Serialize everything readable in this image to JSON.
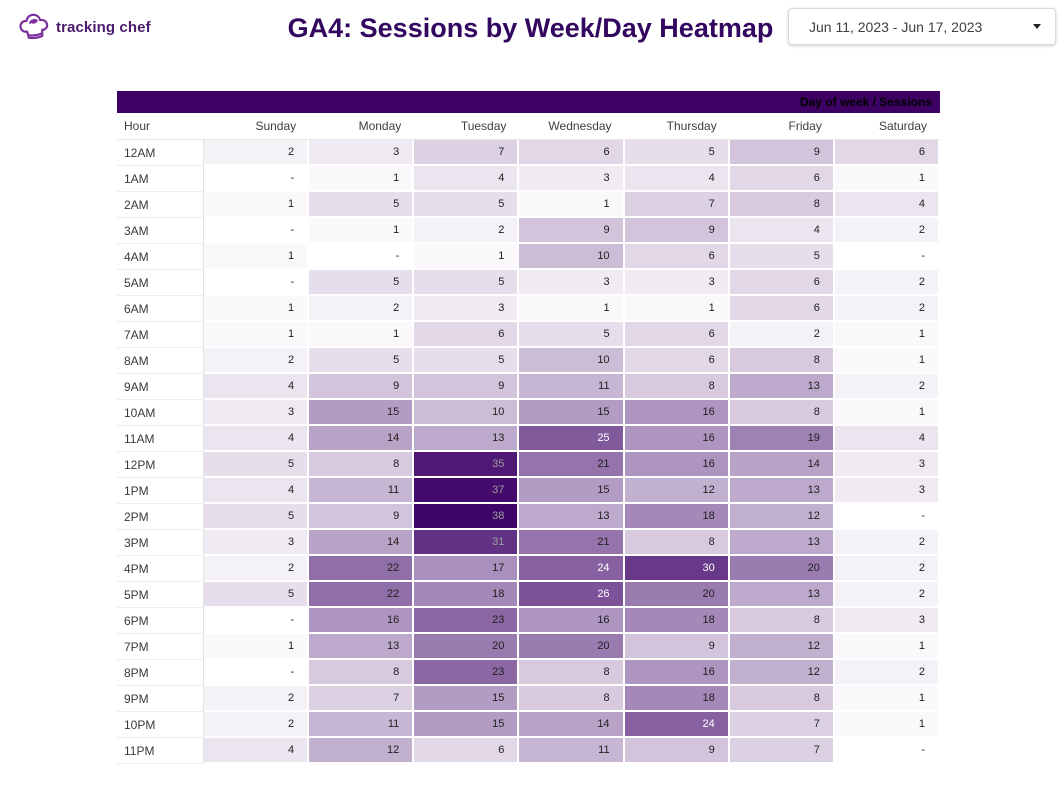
{
  "header": {
    "logo_text": "tracking chef",
    "title": "GA4: Sessions by Week/Day Heatmap",
    "date_picker": {
      "value": "Jun 11, 2023 - Jun 17, 2023"
    }
  },
  "chart_data": {
    "type": "heatmap",
    "title": "GA4: Sessions by Week/Day Heatmap",
    "corner_label": "Day of week / Sessions",
    "row_axis_label": "Hour",
    "columns": [
      "Sunday",
      "Monday",
      "Tuesday",
      "Wednesday",
      "Thursday",
      "Friday",
      "Saturday"
    ],
    "rows": [
      "12AM",
      "1AM",
      "2AM",
      "3AM",
      "4AM",
      "5AM",
      "6AM",
      "7AM",
      "8AM",
      "9AM",
      "10AM",
      "11AM",
      "12PM",
      "1PM",
      "2PM",
      "3PM",
      "4PM",
      "5PM",
      "6PM",
      "7PM",
      "8PM",
      "9PM",
      "10PM",
      "11PM"
    ],
    "values": [
      [
        2,
        3,
        7,
        6,
        5,
        9,
        6
      ],
      [
        null,
        1,
        4,
        3,
        4,
        6,
        1
      ],
      [
        1,
        5,
        5,
        1,
        7,
        8,
        4
      ],
      [
        null,
        1,
        2,
        9,
        9,
        4,
        2
      ],
      [
        1,
        null,
        1,
        10,
        6,
        5,
        null
      ],
      [
        null,
        5,
        5,
        3,
        3,
        6,
        2
      ],
      [
        1,
        2,
        3,
        1,
        1,
        6,
        2
      ],
      [
        1,
        1,
        6,
        5,
        6,
        2,
        1
      ],
      [
        2,
        5,
        5,
        10,
        6,
        8,
        1
      ],
      [
        4,
        9,
        9,
        11,
        8,
        13,
        2
      ],
      [
        3,
        15,
        10,
        15,
        16,
        8,
        1
      ],
      [
        4,
        14,
        13,
        25,
        16,
        19,
        4
      ],
      [
        5,
        8,
        35,
        21,
        16,
        14,
        3
      ],
      [
        4,
        11,
        37,
        15,
        12,
        13,
        3
      ],
      [
        5,
        9,
        38,
        13,
        18,
        12,
        null
      ],
      [
        3,
        14,
        31,
        21,
        8,
        13,
        2
      ],
      [
        2,
        22,
        17,
        24,
        30,
        20,
        2
      ],
      [
        5,
        22,
        18,
        26,
        20,
        13,
        2
      ],
      [
        null,
        16,
        23,
        16,
        18,
        8,
        3
      ],
      [
        1,
        13,
        20,
        20,
        9,
        12,
        1
      ],
      [
        null,
        8,
        23,
        8,
        16,
        12,
        2
      ],
      [
        2,
        7,
        15,
        8,
        18,
        8,
        1
      ],
      [
        2,
        11,
        15,
        14,
        24,
        7,
        1
      ],
      [
        4,
        12,
        6,
        11,
        9,
        7,
        null
      ]
    ],
    "null_display": "-",
    "value_range": [
      0,
      38
    ],
    "color_scale": {
      "min_color": "#FFFFFF",
      "max_color": "#3F0468"
    },
    "text_colors": {
      "dark": "#212121",
      "light": "#FFFFFF",
      "dim": "#9E9E9E",
      "light_threshold": 24,
      "dim_threshold": 31
    },
    "legend_position": "none",
    "grid": false
  },
  "colors": {
    "title": "#33065F",
    "logo_text": "#4A1A6B",
    "logo_icon": "#7A2F9E",
    "table_header_bar": "#3C0162"
  }
}
